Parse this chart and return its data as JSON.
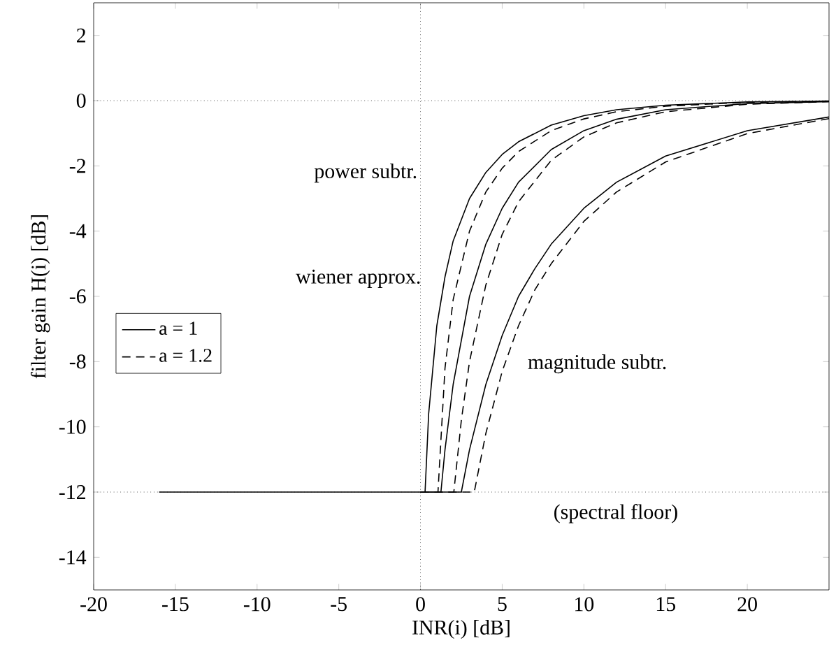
{
  "chart_data": {
    "type": "line",
    "xlabel": "INR(i) [dB]",
    "ylabel": "filter gain H(i) [dB]",
    "xlim": [
      -20,
      25
    ],
    "ylim": [
      -15,
      3
    ],
    "xticks": [
      -20,
      -15,
      -10,
      -5,
      0,
      5,
      10,
      15,
      20
    ],
    "yticks": [
      -14,
      -12,
      -10,
      -8,
      -6,
      -4,
      -2,
      0,
      2
    ],
    "legend": "left",
    "marker": "none",
    "series": [
      {
        "name": "a = 1",
        "color": "#000000",
        "line_style": "solid",
        "x": [
          -16,
          0.28,
          0.5,
          1,
          1.5,
          2,
          3,
          4,
          5,
          6,
          8,
          10,
          12,
          15,
          20,
          25
        ],
        "values": [
          -12,
          -12,
          -9.6,
          -6.9,
          -5.4,
          -4.3,
          -3.0,
          -2.2,
          -1.65,
          -1.26,
          -0.75,
          -0.46,
          -0.28,
          -0.14,
          -0.04,
          -0.01
        ]
      },
      {
        "name": "a = 1.2",
        "color": "#000000",
        "line_style": "dashed",
        "x": [
          0,
          1.07,
          1.5,
          2,
          3,
          4,
          5,
          6,
          8,
          10,
          12,
          15,
          20,
          25
        ],
        "values": [
          -12,
          -12,
          -8.2,
          -6.1,
          -4.0,
          -2.8,
          -2.07,
          -1.56,
          -0.92,
          -0.56,
          -0.34,
          -0.17,
          -0.05,
          -0.02
        ]
      },
      {
        "color": "#000000",
        "line_style": "solid",
        "x": [
          0,
          1.25,
          1.5,
          2,
          3,
          4,
          5,
          6,
          8,
          10,
          12,
          15,
          20,
          25
        ],
        "values": [
          -12,
          -12,
          -10.7,
          -8.7,
          -6.0,
          -4.4,
          -3.3,
          -2.5,
          -1.5,
          -0.92,
          -0.57,
          -0.28,
          -0.09,
          -0.03
        ]
      },
      {
        "color": "#000000",
        "line_style": "dashed",
        "x": [
          0,
          2.04,
          2.5,
          3,
          4,
          5,
          6,
          8,
          10,
          12,
          15,
          20,
          25
        ],
        "values": [
          -12,
          -12,
          -9.8,
          -8.0,
          -5.65,
          -4.1,
          -3.1,
          -1.83,
          -1.11,
          -0.68,
          -0.34,
          -0.11,
          -0.03
        ]
      },
      {
        "color": "#000000",
        "line_style": "solid",
        "x": [
          0,
          2.5,
          3,
          4,
          5,
          6,
          7,
          8,
          10,
          12,
          15,
          20,
          25
        ],
        "values": [
          -12,
          -12,
          -10.7,
          -8.7,
          -7.2,
          -6.0,
          -5.15,
          -4.4,
          -3.3,
          -2.5,
          -1.7,
          -0.92,
          -0.5
        ]
      },
      {
        "color": "#000000",
        "line_style": "dashed",
        "x": [
          0,
          3.29,
          4,
          5,
          6,
          7,
          8,
          10,
          12,
          15,
          20,
          25
        ],
        "values": [
          -12,
          -12,
          -10.2,
          -8.3,
          -6.9,
          -5.8,
          -5.0,
          -3.7,
          -2.8,
          -1.88,
          -1.01,
          -0.55
        ]
      }
    ],
    "ref_lines": [
      {
        "axis": "y",
        "value": 0,
        "color": "#000000",
        "line_style": "dotted"
      },
      {
        "axis": "y",
        "value": -12,
        "color": "#000000",
        "line_style": "dotted"
      },
      {
        "axis": "x",
        "value": 0,
        "color": "#000000",
        "line_style": "dotted"
      }
    ],
    "annotations": [
      "power subtr.",
      "wiener approx.",
      "magnitude subtr.",
      "(spectral floor)"
    ]
  }
}
